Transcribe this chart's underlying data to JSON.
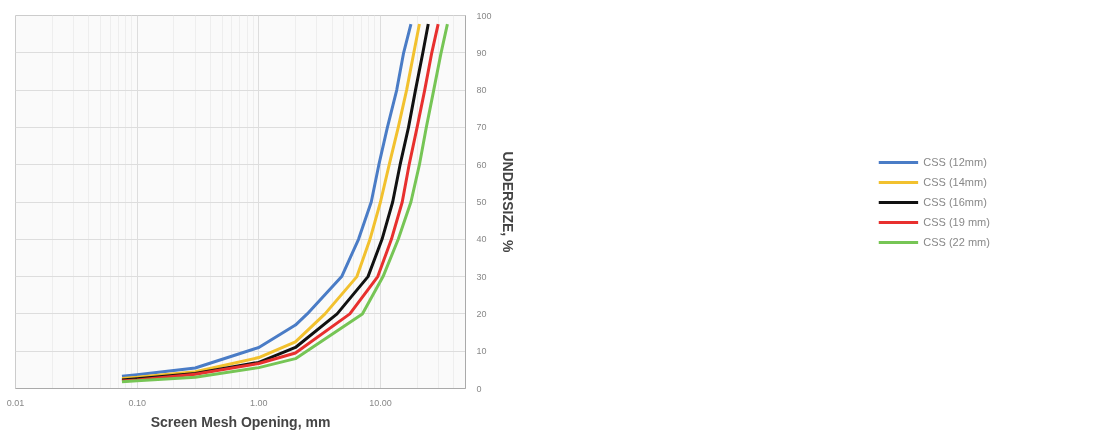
{
  "chart_data": {
    "type": "line",
    "xlabel": "Screen Mesh Opening, mm",
    "ylabel": "UNDERSIZE, %",
    "log": "x",
    "xlim": [
      0.01,
      50
    ],
    "xticks": [
      {
        "value": 0.01,
        "label": "0.01"
      },
      {
        "value": 0.1,
        "label": "0.10"
      },
      {
        "value": 1,
        "label": "1.00"
      },
      {
        "value": 10,
        "label": "10.00"
      }
    ],
    "ylim": [
      0,
      100
    ],
    "yticks": [
      0,
      10,
      20,
      30,
      40,
      50,
      60,
      70,
      80,
      90,
      100
    ],
    "grid": true,
    "legend": "right",
    "line_style": "solid",
    "marker": "none",
    "series": [
      {
        "name": "CSS (12mm)",
        "color": "#4a7cc6",
        "x": [
          0.075,
          0.1,
          0.3,
          1,
          2,
          2.5,
          4.8,
          6.6,
          8.4,
          9.7,
          11.4,
          13.6,
          15.5,
          17.8
        ],
        "values": [
          3.3,
          3.7,
          5.5,
          11,
          17,
          20,
          30,
          40,
          50,
          60,
          70,
          80,
          90,
          97.7
        ]
      },
      {
        "name": "CSS (14mm)",
        "color": "#f2c12e",
        "x": [
          0.075,
          0.1,
          0.3,
          1,
          2,
          3.5,
          6.4,
          8.2,
          10,
          11.8,
          14,
          16.4,
          18.8,
          20.9
        ],
        "values": [
          2.7,
          3,
          4.5,
          8.3,
          12.5,
          20,
          30,
          40,
          50,
          60,
          70,
          80,
          90,
          97.7
        ]
      },
      {
        "name": "CSS (16mm)",
        "color": "#111111",
        "x": [
          0.075,
          0.1,
          0.3,
          1,
          2,
          4.4,
          7.9,
          10.3,
          12.6,
          14.5,
          17,
          19.4,
          22.3,
          24.7
        ],
        "values": [
          2.3,
          2.6,
          4,
          7,
          11,
          20,
          30,
          40,
          50,
          60,
          70,
          80,
          90,
          97.7
        ]
      },
      {
        "name": "CSS (19 mm)",
        "color": "#e8302e",
        "x": [
          0.075,
          0.1,
          0.3,
          1,
          2,
          5.6,
          9.5,
          12.3,
          15.1,
          17.2,
          20,
          23.1,
          26.4,
          29.8
        ],
        "values": [
          2,
          2.3,
          3.8,
          6.7,
          9.5,
          20,
          30,
          40,
          50,
          60,
          70,
          80,
          90,
          97.7
        ]
      },
      {
        "name": "CSS (22 mm)",
        "color": "#76c555",
        "x": [
          0.075,
          0.1,
          0.3,
          1,
          2,
          7.1,
          10.5,
          14,
          17.8,
          20.9,
          23.8,
          27.4,
          31.5,
          35.5
        ],
        "values": [
          1.8,
          2.1,
          3,
          5.6,
          8,
          20,
          30,
          40,
          50,
          60,
          70,
          80,
          90,
          97.7
        ]
      }
    ]
  }
}
